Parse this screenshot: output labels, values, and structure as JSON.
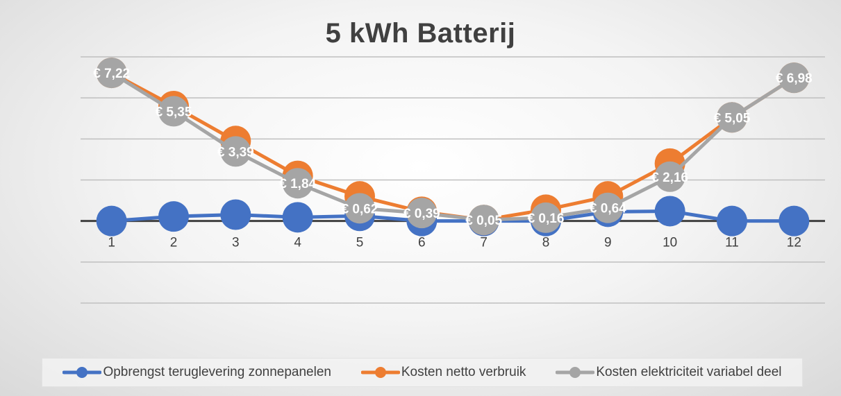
{
  "chart_data": {
    "type": "line",
    "title": "5 kWh Batterij",
    "categories": [
      "1",
      "2",
      "3",
      "4",
      "5",
      "6",
      "7",
      "8",
      "9",
      "10",
      "11",
      "12"
    ],
    "ylim": [
      -4,
      8
    ],
    "y_gridlines": [
      -4,
      -2,
      0,
      2,
      4,
      6,
      8
    ],
    "y_tick_labels_visible": false,
    "grid": true,
    "legend_position": "bottom",
    "series": [
      {
        "name": "Opbrengst teruglevering zonnepanelen",
        "color": "#4472C4",
        "values": [
          0.0,
          0.22,
          0.31,
          0.18,
          0.25,
          0.0,
          0.0,
          0.0,
          0.45,
          0.48,
          0.0,
          0.0
        ]
      },
      {
        "name": "Kosten netto verbruik",
        "color": "#ED7D31",
        "values": [
          7.22,
          5.6,
          3.9,
          2.2,
          1.2,
          0.45,
          0.05,
          0.55,
          1.2,
          2.8,
          5.05,
          6.98
        ]
      },
      {
        "name": "Kosten elektriciteit variabel deel",
        "color": "#A5A5A5",
        "values": [
          7.22,
          5.35,
          3.39,
          1.84,
          0.62,
          0.39,
          0.05,
          0.16,
          0.64,
          2.16,
          5.05,
          6.98
        ],
        "data_labels": [
          "€ 7,22",
          "€ 5,35",
          "€ 3,39",
          "€ 1,84",
          "€ 0,62",
          "€ 0,39",
          "€ 0,05",
          "€ 0,16",
          "€ 0,64",
          "€ 2,16",
          "€ 5,05",
          "€ 6,98"
        ]
      }
    ]
  }
}
